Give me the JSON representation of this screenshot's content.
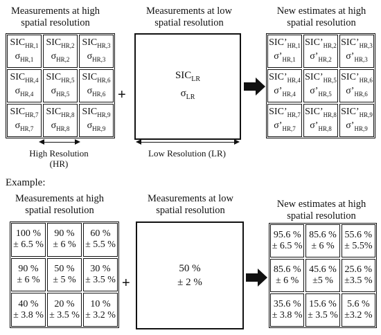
{
  "top": {
    "title_high": [
      "Measurements at high",
      "spatial resolution"
    ],
    "title_low": [
      "Measurements at low",
      "spatial resolution"
    ],
    "title_new": [
      "New estimates at high",
      "spatial resolution"
    ],
    "high_cells": [
      {
        "a": "SIC",
        "as": "HR,1",
        "b": "σ",
        "bs": "HR,1"
      },
      {
        "a": "SIC",
        "as": "HR,2",
        "b": "σ",
        "bs": "HR,2"
      },
      {
        "a": "SIC",
        "as": "HR,3",
        "b": "σ",
        "bs": "HR,3"
      },
      {
        "a": "SIC",
        "as": "HR,4",
        "b": "σ",
        "bs": "HR,4"
      },
      {
        "a": "SIC",
        "as": "HR,5",
        "b": "σ",
        "bs": "HR,5"
      },
      {
        "a": "SIC",
        "as": "HR,6",
        "b": "σ",
        "bs": "HR,6"
      },
      {
        "a": "SIC",
        "as": "HR,7",
        "b": "σ",
        "bs": "HR,7"
      },
      {
        "a": "SIC",
        "as": "HR,8",
        "b": "σ",
        "bs": "HR,8"
      },
      {
        "a": "SIC",
        "as": "HR,9",
        "b": "σ",
        "bs": "HR,9"
      }
    ],
    "low_cell": {
      "a": "SIC",
      "as": "LR",
      "b": "σ",
      "bs": "LR"
    },
    "new_cells": [
      {
        "a": "SIC’",
        "as": "HR,1",
        "b": "σ’",
        "bs": "HR,1"
      },
      {
        "a": "SIC’",
        "as": "HR,2",
        "b": "σ’",
        "bs": "HR,2"
      },
      {
        "a": "SIC’",
        "as": "HR,3",
        "b": "σ’",
        "bs": "HR,3"
      },
      {
        "a": "SIC’",
        "as": "HR,4",
        "b": "σ’",
        "bs": "HR,4"
      },
      {
        "a": "SIC’",
        "as": "HR,5",
        "b": "σ’",
        "bs": "HR,5"
      },
      {
        "a": "SIC’",
        "as": "HR,6",
        "b": "σ’",
        "bs": "HR,6"
      },
      {
        "a": "SIC’",
        "as": "HR,7",
        "b": "σ’",
        "bs": "HR,7"
      },
      {
        "a": "SIC’",
        "as": "HR,8",
        "b": "σ’",
        "bs": "HR,8"
      },
      {
        "a": "SIC’",
        "as": "HR,9",
        "b": "σ’",
        "bs": "HR,9"
      }
    ],
    "plus": "+",
    "hr_label": [
      "High Resolution",
      "(HR)"
    ],
    "lr_label": "Low Resolution (LR)"
  },
  "example": {
    "label": "Example:",
    "title_high": [
      "Measurements at high",
      "spatial resolution"
    ],
    "title_low": [
      "Measurements at low",
      "spatial resolution"
    ],
    "title_new": [
      "New estimates at high",
      "spatial resolution"
    ],
    "high_cells": [
      [
        "100 %",
        "± 6.5 %"
      ],
      [
        "90 %",
        "± 6 %"
      ],
      [
        "60 %",
        "± 5.5 %"
      ],
      [
        "90 %",
        "± 6 %"
      ],
      [
        "50 %",
        "± 5 %"
      ],
      [
        "30 %",
        "± 3.5 %"
      ],
      [
        "40 %",
        "± 3.8 %"
      ],
      [
        "20 %",
        "± 3.5 %"
      ],
      [
        "10 %",
        "± 3.2 %"
      ]
    ],
    "low_cell": [
      "50 %",
      "± 2 %"
    ],
    "new_cells": [
      [
        "95.6 %",
        "± 6.5 %"
      ],
      [
        "85.6 %",
        "± 6 %"
      ],
      [
        "55.6 %",
        "± 5.5%"
      ],
      [
        "85.6 %",
        "± 6 %"
      ],
      [
        "45.6 %",
        "±5 %"
      ],
      [
        "25.6 %",
        "±3.5 %"
      ],
      [
        "35.6 %",
        "± 3.8 %"
      ],
      [
        "15.6 %",
        "± 3.5 %"
      ],
      [
        "5.6 %",
        "±3.2 %"
      ]
    ],
    "plus": "+"
  }
}
